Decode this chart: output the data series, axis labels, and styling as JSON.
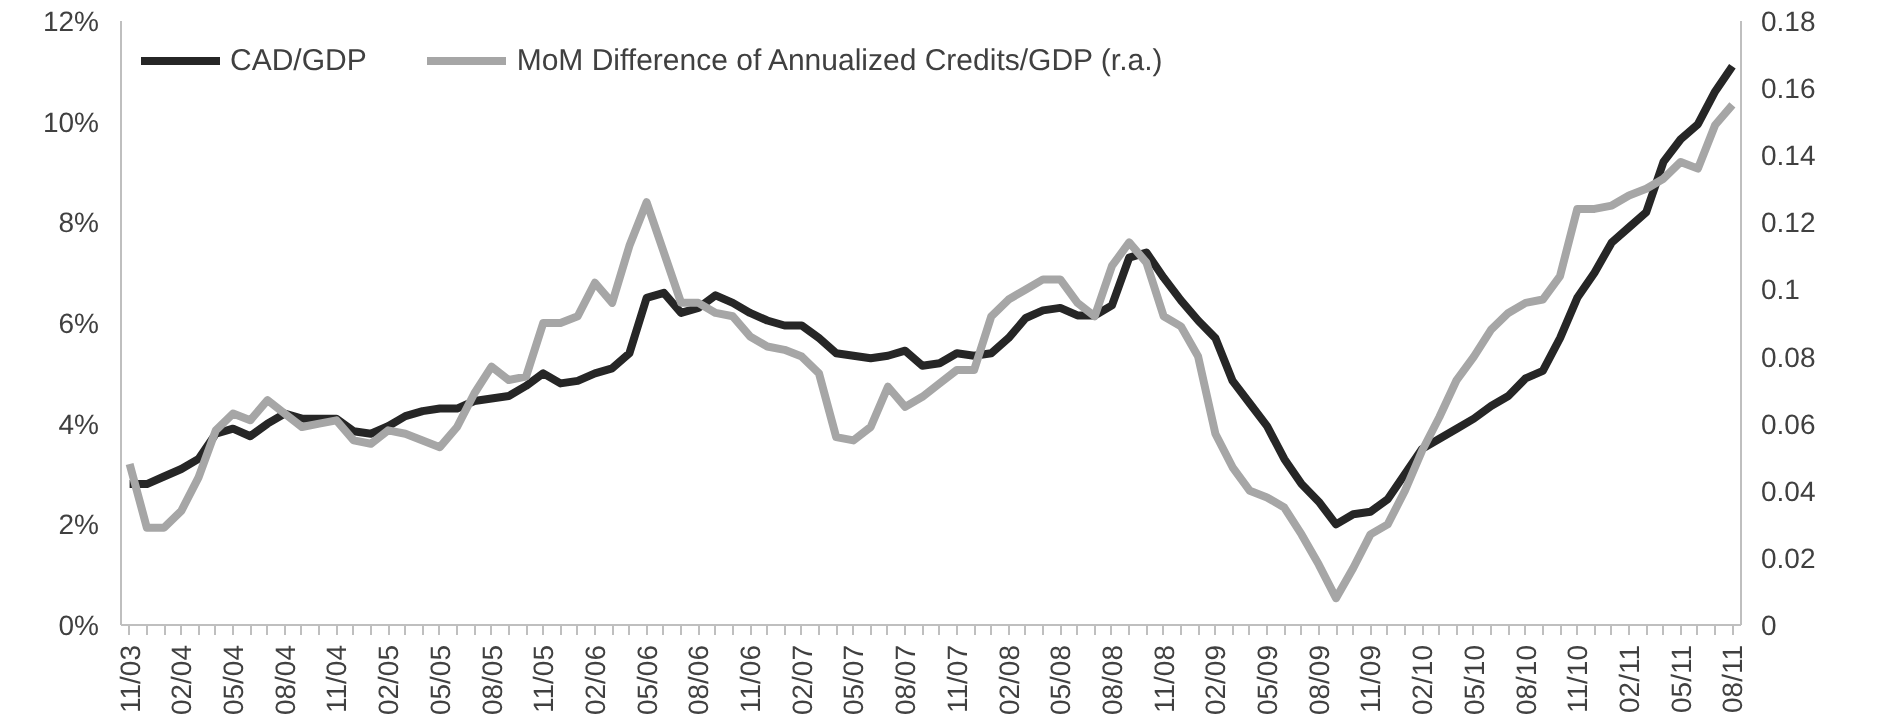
{
  "chart_data": {
    "type": "line",
    "categories": [
      "11/03",
      null,
      null,
      "02/04",
      null,
      null,
      "05/04",
      null,
      null,
      "08/04",
      null,
      null,
      "11/04",
      null,
      null,
      "02/05",
      null,
      null,
      "05/05",
      null,
      null,
      "08/05",
      null,
      null,
      "11/05",
      null,
      null,
      "02/06",
      null,
      null,
      "05/06",
      null,
      null,
      "08/06",
      null,
      null,
      "11/06",
      null,
      null,
      "02/07",
      null,
      null,
      "05/07",
      null,
      null,
      "08/07",
      null,
      null,
      "11/07",
      null,
      null,
      "02/08",
      null,
      null,
      "05/08",
      null,
      null,
      "08/08",
      null,
      null,
      "11/08",
      null,
      null,
      "02/09",
      null,
      null,
      "05/09",
      null,
      null,
      "08/09",
      null,
      null,
      "11/09",
      null,
      null,
      "02/10",
      null,
      null,
      "05/10",
      null,
      null,
      "08/10",
      null,
      null,
      "11/10",
      null,
      null,
      "02/11",
      null,
      null,
      "05/11",
      null,
      null,
      "08/11"
    ],
    "series": [
      {
        "name": "CAD/GDP",
        "color": "#262626",
        "values": [
          2.8,
          2.8,
          2.95,
          3.1,
          3.3,
          3.8,
          3.9,
          3.75,
          4.0,
          4.2,
          4.1,
          4.1,
          4.1,
          3.85,
          3.8,
          3.95,
          4.15,
          4.25,
          4.3,
          4.3,
          4.45,
          4.5,
          4.55,
          4.75,
          5.0,
          4.8,
          4.85,
          5.0,
          5.1,
          5.4,
          6.5,
          6.6,
          6.2,
          6.3,
          6.55,
          6.4,
          6.2,
          6.05,
          5.95,
          5.95,
          5.7,
          5.4,
          5.35,
          5.3,
          5.35,
          5.45,
          5.15,
          5.2,
          5.4,
          5.35,
          5.4,
          5.7,
          6.1,
          6.25,
          6.3,
          6.15,
          6.15,
          6.35,
          7.3,
          7.4,
          6.9,
          6.45,
          6.05,
          5.7,
          4.85,
          4.4,
          3.95,
          3.3,
          2.8,
          2.45,
          2.0,
          2.2,
          2.25,
          2.5,
          3.0,
          3.5,
          3.7,
          3.9,
          4.1,
          4.35,
          4.55,
          4.9,
          5.05,
          5.7,
          6.5,
          7.0,
          7.6,
          7.9,
          8.2,
          9.2,
          9.65,
          9.95,
          10.6,
          11.1
        ]
      },
      {
        "name": "MoM Difference of Annualized Credits/GDP (r.a.)",
        "color": "#a6a6a6",
        "axis": "y2",
        "values": [
          0.048,
          0.029,
          0.029,
          0.034,
          0.044,
          0.058,
          0.063,
          0.061,
          0.067,
          0.063,
          0.059,
          0.06,
          0.061,
          0.055,
          0.054,
          0.058,
          0.057,
          0.055,
          0.053,
          0.059,
          0.069,
          0.077,
          0.073,
          0.074,
          0.09,
          0.09,
          0.092,
          0.102,
          0.096,
          0.113,
          0.126,
          0.111,
          0.096,
          0.096,
          0.093,
          0.092,
          0.086,
          0.083,
          0.082,
          0.08,
          0.075,
          0.056,
          0.055,
          0.059,
          0.071,
          0.065,
          0.068,
          0.072,
          0.076,
          0.076,
          0.092,
          0.097,
          0.1,
          0.103,
          0.103,
          0.096,
          0.092,
          0.107,
          0.114,
          0.108,
          0.092,
          0.089,
          0.08,
          0.057,
          0.047,
          0.04,
          0.038,
          0.035,
          0.027,
          0.018,
          0.008,
          0.017,
          0.027,
          0.03,
          0.04,
          0.052,
          0.062,
          0.073,
          0.08,
          0.088,
          0.093,
          0.096,
          0.097,
          0.104,
          0.124,
          0.124,
          0.125,
          0.128,
          0.13,
          0.133,
          0.138,
          0.136,
          0.149,
          0.155
        ]
      }
    ],
    "ylim": [
      0,
      12
    ],
    "yticks": [
      {
        "value": 0,
        "label": "0%"
      },
      {
        "value": 2,
        "label": "2%"
      },
      {
        "value": 4,
        "label": "4%"
      },
      {
        "value": 6,
        "label": "6%"
      },
      {
        "value": 8,
        "label": "8%"
      },
      {
        "value": 10,
        "label": "10%"
      },
      {
        "value": 12,
        "label": "12%"
      }
    ],
    "y2lim": [
      0,
      0.18
    ],
    "y2ticks": [
      0,
      0.02,
      0.04,
      0.06,
      0.08,
      0.1,
      0.12,
      0.14,
      0.16,
      0.18
    ],
    "legend": "top left",
    "grid": false,
    "marker": "none",
    "line_style": "solid"
  }
}
